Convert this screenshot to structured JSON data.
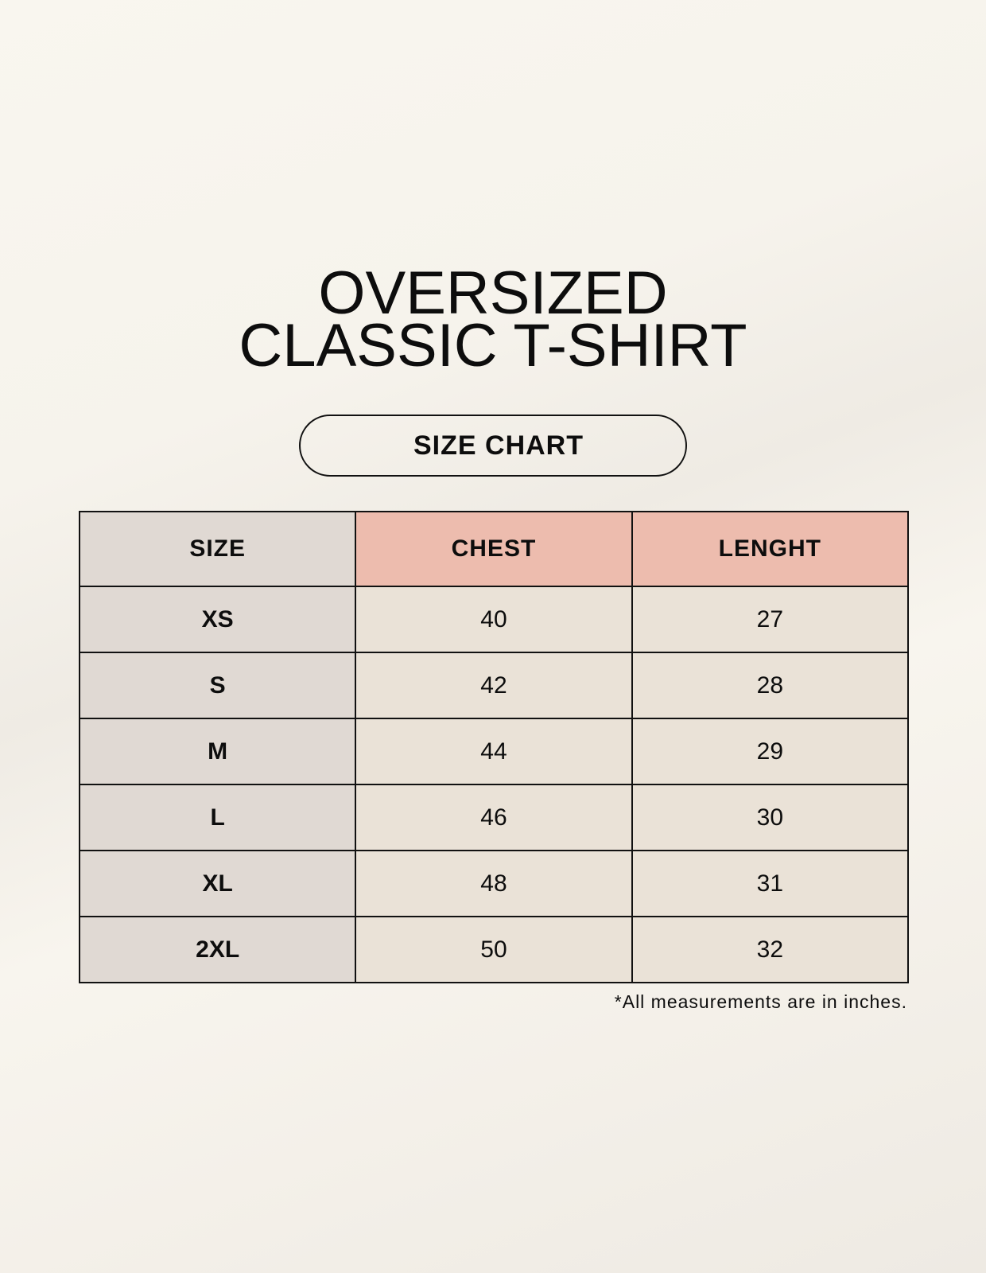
{
  "title": {
    "line1": "OVERSIZED",
    "line2": "CLASSIC T-SHIRT"
  },
  "subtitle": "SIZE CHART",
  "table": {
    "headers": [
      "SIZE",
      "CHEST",
      "LENGHT"
    ],
    "rows": [
      [
        "XS",
        "40",
        "27"
      ],
      [
        "S",
        "42",
        "28"
      ],
      [
        "M",
        "44",
        "29"
      ],
      [
        "L",
        "46",
        "30"
      ],
      [
        "XL",
        "48",
        "31"
      ],
      [
        "2XL",
        "50",
        "32"
      ]
    ]
  },
  "footnote": "*All measurements are in inches.",
  "colors": {
    "background": "#f8f5ee",
    "size_column": "#e0d9d3",
    "header_accent": "#edbcae",
    "cell": "#eae2d7"
  }
}
